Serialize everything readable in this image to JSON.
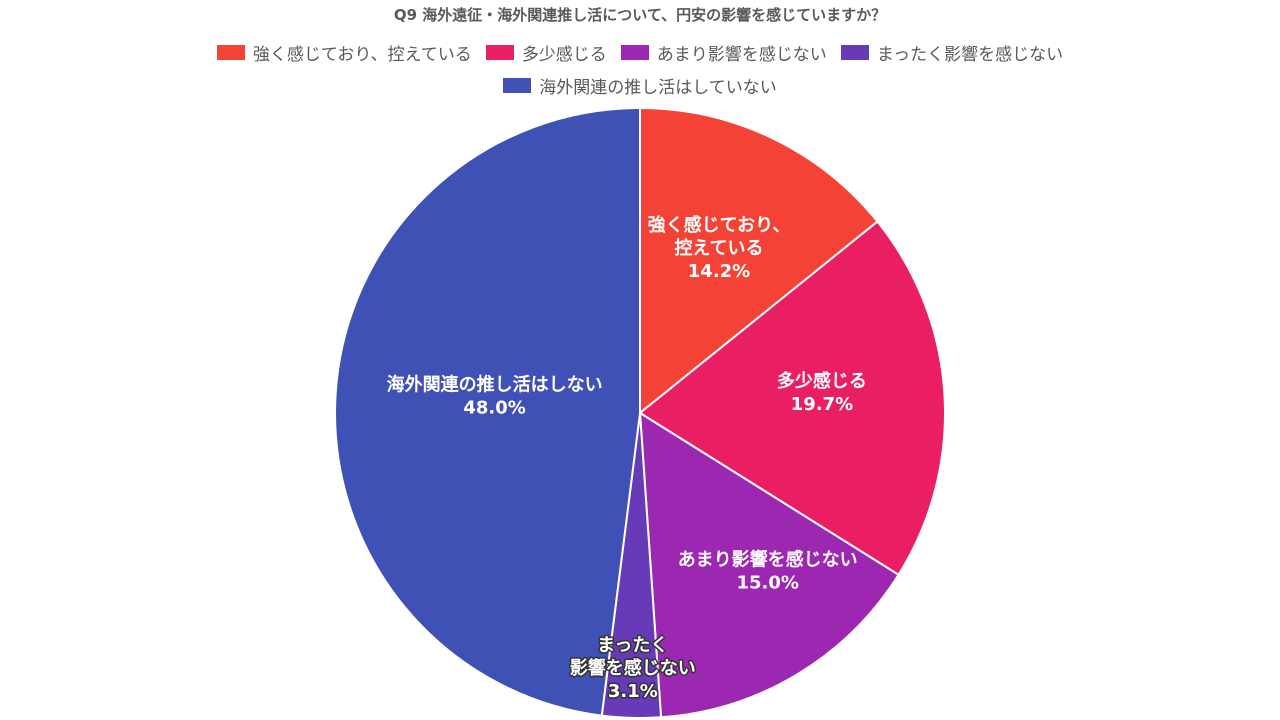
{
  "chart_data": {
    "type": "pie",
    "title": "Q9 海外遠征・海外関連推し活について、円安の影響を感じていますか？",
    "legend_position": "top",
    "categories": [
      "強く感じており、控えている",
      "多少感じる",
      "あまり影響を感じない",
      "まったく影響を感じない",
      "海外関連の推し活はしていない"
    ],
    "values": [
      14.2,
      19.7,
      15.0,
      3.1,
      48.0
    ],
    "value_labels": [
      "14.2%",
      "19.7%",
      "15.0%",
      "3.1%",
      "48.0%"
    ],
    "slice_labels": [
      [
        "強く感じており、",
        "控えている"
      ],
      [
        "多少感じる"
      ],
      [
        "あまり影響を感じない"
      ],
      [
        "まったく",
        "影響を感じない"
      ],
      [
        "海外関連の推し活はしない"
      ]
    ],
    "colors": [
      "#F44336",
      "#E91E63",
      "#9C27B0",
      "#673AB7",
      "#3F51B5"
    ]
  }
}
